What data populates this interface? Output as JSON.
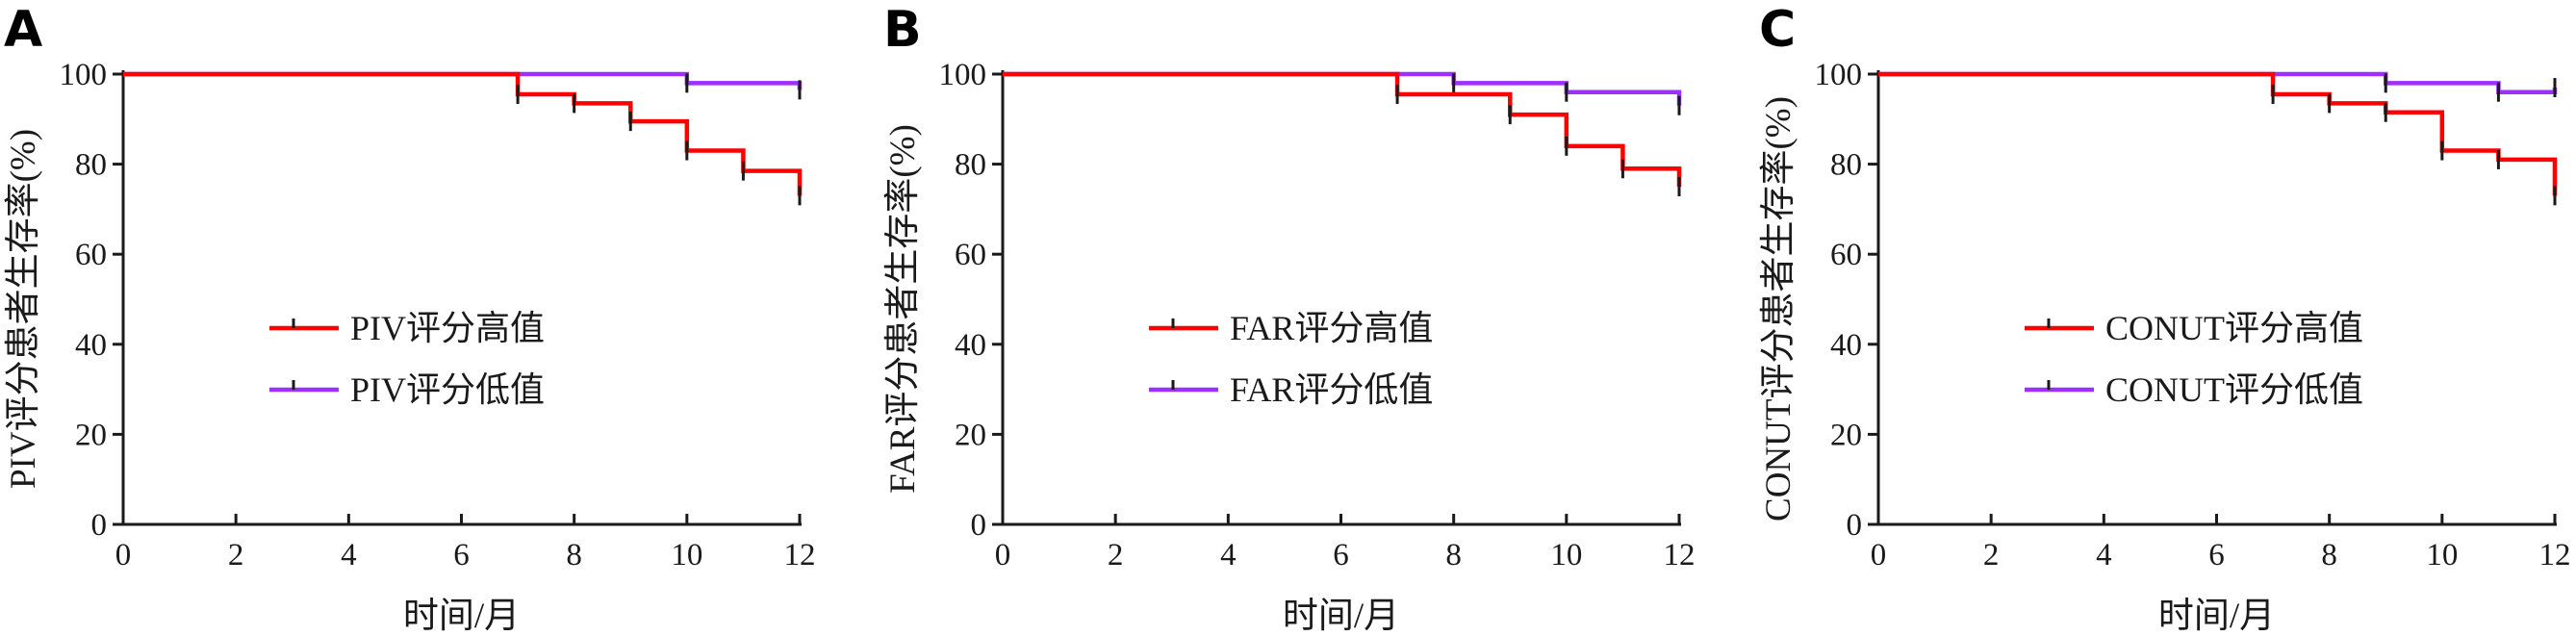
{
  "chart_data": [
    {
      "panel": "A",
      "type": "line",
      "step": true,
      "xlabel": "时间/月",
      "ylabel": "PIV评分患者生存率(%)",
      "xlim": [
        0,
        12
      ],
      "ylim": [
        0,
        100
      ],
      "xticks": [
        0,
        2,
        4,
        6,
        8,
        10,
        12
      ],
      "yticks": [
        0,
        20,
        40,
        60,
        80,
        100
      ],
      "legend_position": "center-left",
      "series": [
        {
          "name": "PIV评分高值",
          "color": "#ff0000",
          "x": [
            0,
            7,
            8,
            9,
            10,
            11,
            12
          ],
          "y": [
            100,
            95.5,
            93.5,
            89.5,
            83,
            78.5,
            73
          ]
        },
        {
          "name": "PIV评分低值",
          "color": "#9b30ff",
          "x": [
            0,
            10,
            12
          ],
          "y": [
            100,
            98,
            96.5
          ]
        }
      ]
    },
    {
      "panel": "B",
      "type": "line",
      "step": true,
      "xlabel": "时间/月",
      "ylabel": "FAR评分患者生存率(%)",
      "xlim": [
        0,
        12
      ],
      "ylim": [
        0,
        100
      ],
      "xticks": [
        0,
        2,
        4,
        6,
        8,
        10,
        12
      ],
      "yticks": [
        0,
        20,
        40,
        60,
        80,
        100
      ],
      "legend_position": "center-left",
      "series": [
        {
          "name": "FAR评分高值",
          "color": "#ff0000",
          "x": [
            0,
            7,
            9,
            10,
            11,
            12
          ],
          "y": [
            100,
            95.5,
            91,
            84,
            79,
            75
          ]
        },
        {
          "name": "FAR评分低值",
          "color": "#9b30ff",
          "x": [
            0,
            8,
            10,
            12
          ],
          "y": [
            100,
            98,
            96,
            93
          ]
        }
      ]
    },
    {
      "panel": "C",
      "type": "line",
      "step": true,
      "xlabel": "时间/月",
      "ylabel": "CONUT评分患者生存率(%)",
      "xlim": [
        0,
        12
      ],
      "ylim": [
        0,
        100
      ],
      "xticks": [
        0,
        2,
        4,
        6,
        8,
        10,
        12
      ],
      "yticks": [
        0,
        20,
        40,
        60,
        80,
        100
      ],
      "legend_position": "center-left",
      "series": [
        {
          "name": "CONUT评分高值",
          "color": "#ff0000",
          "x": [
            0,
            7,
            8,
            9,
            10,
            11,
            12
          ],
          "y": [
            100,
            95.5,
            93.5,
            91.5,
            83,
            81,
            73
          ]
        },
        {
          "name": "CONUT评分低值",
          "color": "#9b30ff",
          "x": [
            0,
            9,
            11,
            12
          ],
          "y": [
            100,
            98,
            96,
            97
          ]
        }
      ]
    }
  ]
}
